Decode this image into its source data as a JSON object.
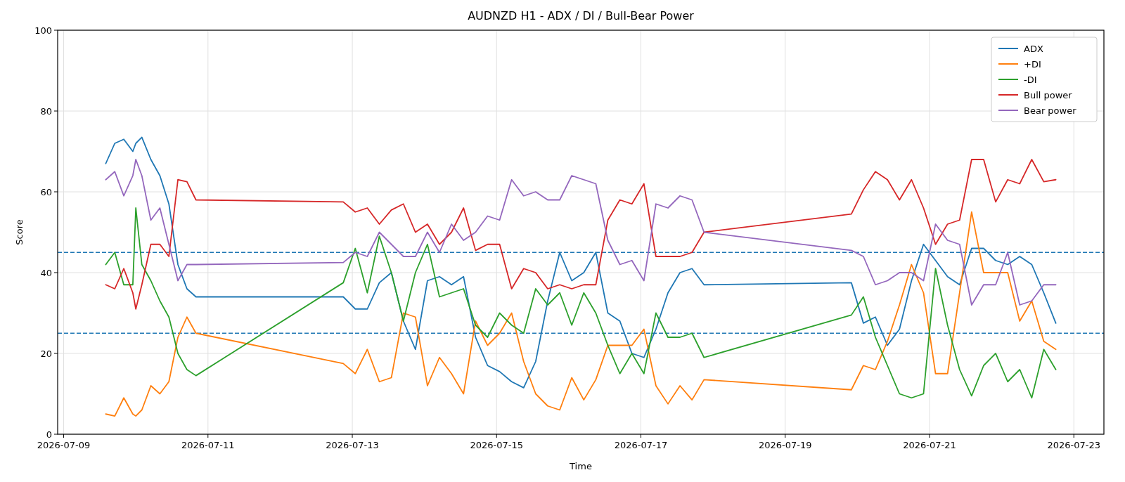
{
  "chart_data": {
    "type": "line",
    "title": "AUDNZD H1 - ADX / DI / Bull-Bear Power",
    "xlabel": "Time",
    "ylabel": "Score",
    "x": [
      "2026-07-09T14:00",
      "2026-07-09T17:00",
      "2026-07-09T20:00",
      "2026-07-09T23:00",
      "2026-07-10T00:00",
      "2026-07-10T02:00",
      "2026-07-10T05:00",
      "2026-07-10T08:00",
      "2026-07-10T11:00",
      "2026-07-10T14:00",
      "2026-07-10T17:00",
      "2026-07-10T20:00",
      "2026-07-12T21:00",
      "2026-07-13T01:00",
      "2026-07-13T05:00",
      "2026-07-13T09:00",
      "2026-07-13T13:00",
      "2026-07-13T17:00",
      "2026-07-13T21:00",
      "2026-07-14T01:00",
      "2026-07-14T05:00",
      "2026-07-14T09:00",
      "2026-07-14T13:00",
      "2026-07-14T17:00",
      "2026-07-14T21:00",
      "2026-07-15T01:00",
      "2026-07-15T05:00",
      "2026-07-15T09:00",
      "2026-07-15T13:00",
      "2026-07-15T17:00",
      "2026-07-15T21:00",
      "2026-07-16T01:00",
      "2026-07-16T05:00",
      "2026-07-16T09:00",
      "2026-07-16T13:00",
      "2026-07-16T17:00",
      "2026-07-16T21:00",
      "2026-07-17T01:00",
      "2026-07-17T05:00",
      "2026-07-17T09:00",
      "2026-07-17T13:00",
      "2026-07-17T17:00",
      "2026-07-17T21:00",
      "2026-07-19T22:00",
      "2026-07-20T02:00",
      "2026-07-20T06:00",
      "2026-07-20T10:00",
      "2026-07-20T14:00",
      "2026-07-20T18:00",
      "2026-07-20T22:00",
      "2026-07-21T02:00",
      "2026-07-21T06:00",
      "2026-07-21T10:00",
      "2026-07-21T14:00",
      "2026-07-21T18:00",
      "2026-07-21T22:00",
      "2026-07-22T02:00",
      "2026-07-22T06:00",
      "2026-07-22T10:00",
      "2026-07-22T14:00",
      "2026-07-22T18:00"
    ],
    "series": [
      {
        "name": "ADX",
        "color": "#1f77b4",
        "values": [
          67,
          72,
          73,
          70,
          72,
          73.5,
          68,
          64,
          57,
          42,
          36,
          34,
          34,
          31,
          31,
          37.5,
          40,
          28,
          21,
          38,
          39,
          37,
          39,
          24,
          17,
          15.5,
          13,
          11.5,
          18,
          33,
          45,
          38,
          40,
          45,
          30,
          28,
          20,
          19,
          26,
          35,
          40,
          41,
          37,
          37.5,
          27.5,
          29,
          22,
          26,
          38,
          47,
          43,
          39,
          37,
          46,
          46,
          43,
          42,
          44,
          42,
          35,
          27.5
        ]
      },
      {
        "name": "+DI",
        "color": "#ff7f0e",
        "values": [
          5,
          4.5,
          9,
          5,
          4.5,
          6,
          12,
          10,
          13,
          24,
          29,
          25,
          17.5,
          15,
          21,
          13,
          14,
          30,
          29,
          12,
          19,
          15,
          10,
          28,
          22,
          25,
          30,
          18,
          10,
          7,
          6,
          14,
          8.5,
          13.5,
          22,
          22,
          22,
          26,
          12,
          7.5,
          12,
          8.5,
          13.5,
          11,
          17,
          16,
          23,
          32,
          42,
          35,
          15,
          15,
          35,
          55,
          40,
          40,
          40,
          28,
          33,
          23,
          21
        ]
      },
      {
        "name": "-DI",
        "color": "#2ca02c",
        "values": [
          42,
          45,
          37,
          37,
          56,
          42,
          38,
          33,
          29,
          20,
          16,
          14.5,
          37.5,
          46,
          35,
          49,
          40,
          28,
          40,
          47,
          34,
          35,
          36,
          27,
          24,
          30,
          27,
          25,
          36,
          32,
          35,
          27,
          35,
          30,
          22,
          15,
          20,
          15,
          30,
          24,
          24,
          25,
          19,
          29.5,
          34,
          24,
          17,
          10,
          9,
          10,
          41,
          27,
          16,
          9.5,
          17,
          20,
          13,
          16,
          9,
          21,
          16
        ]
      },
      {
        "name": "Bull power",
        "color": "#d62728",
        "values": [
          37,
          36,
          41,
          35,
          31,
          37,
          47,
          47,
          44,
          63,
          62.5,
          58,
          57.5,
          55,
          56,
          52,
          55.5,
          57,
          50,
          52,
          47,
          50,
          56,
          45.5,
          47,
          47,
          36,
          41,
          40,
          36,
          37,
          36,
          37,
          37,
          53,
          58,
          57,
          62,
          44,
          44,
          44,
          45,
          50,
          54.5,
          60.5,
          65,
          63,
          58,
          63,
          56,
          47,
          52,
          53,
          68,
          68,
          57.5,
          63,
          62,
          68,
          62.5,
          63
        ]
      },
      {
        "name": "Bear power",
        "color": "#9467bd",
        "values": [
          63,
          65,
          59,
          64,
          68,
          64,
          53,
          56,
          47,
          38,
          42,
          42,
          42.5,
          45,
          44,
          50,
          47,
          44,
          44,
          50,
          45,
          52,
          48,
          50,
          54,
          53,
          63,
          59,
          60,
          58,
          58,
          64,
          63,
          62,
          48,
          42,
          43,
          38,
          57,
          56,
          59,
          58,
          50,
          45.5,
          44,
          37,
          38,
          40,
          40,
          38,
          52,
          48,
          47,
          32,
          37,
          37,
          45,
          32,
          33,
          37,
          37
        ]
      }
    ],
    "xlim": [
      "2026-07-08T22:00",
      "2026-07-23T10:00"
    ],
    "xticks": [
      "2026-07-09",
      "2026-07-11",
      "2026-07-13",
      "2026-07-15",
      "2026-07-17",
      "2026-07-19",
      "2026-07-21",
      "2026-07-23"
    ],
    "ylim": [
      0,
      100
    ],
    "yticks": [
      0,
      20,
      40,
      60,
      80,
      100
    ],
    "ref_lines": [
      {
        "axis": "y",
        "value": 45,
        "color": "#1f77b4",
        "line_style": "dashed"
      },
      {
        "axis": "y",
        "value": 25,
        "color": "#1f77b4",
        "line_style": "dashed"
      }
    ],
    "grid": true,
    "legend": "top right",
    "line_style": "solid"
  }
}
